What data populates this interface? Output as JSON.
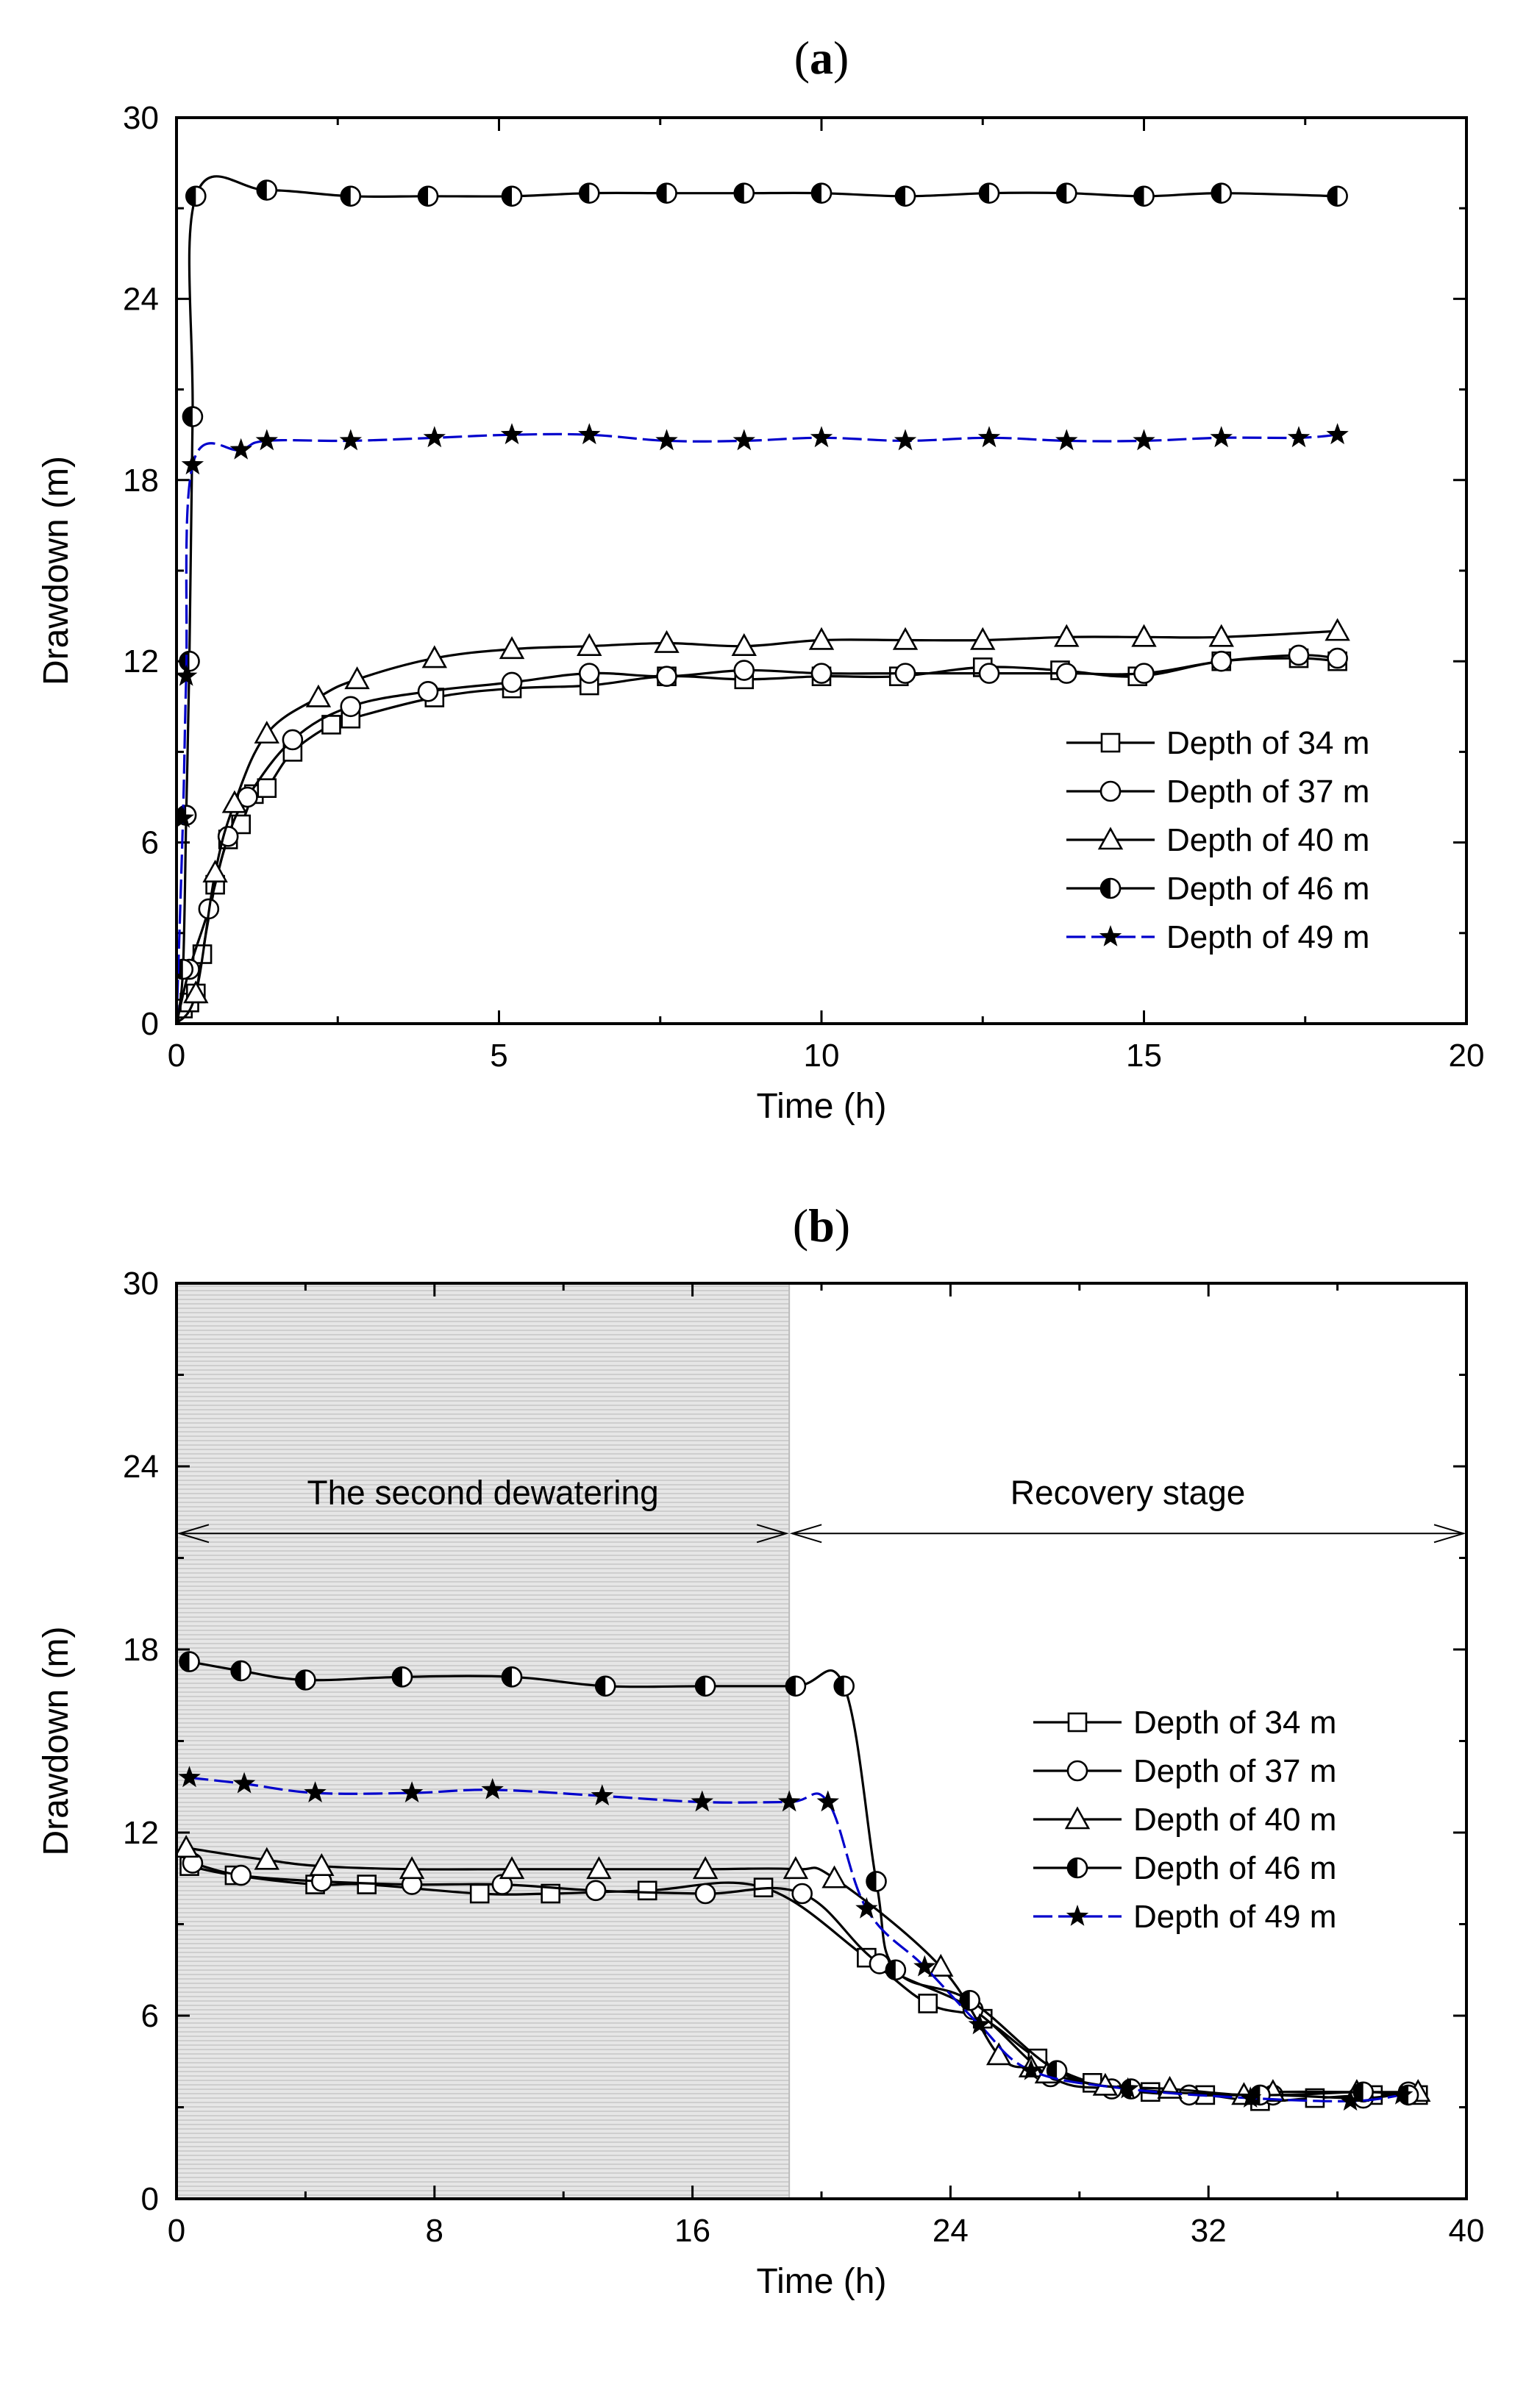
{
  "chart_data": [
    {
      "type": "line",
      "panel": "(a)",
      "title_parts": [
        "(",
        "a",
        ")"
      ],
      "xlabel": "Time (h)",
      "ylabel": "Drawdown (m)",
      "xlim": [
        0,
        20
      ],
      "ylim": [
        0,
        30
      ],
      "xticks": [
        0,
        5,
        10,
        15,
        20
      ],
      "yticks": [
        0,
        6,
        12,
        18,
        24,
        30
      ],
      "legend_position": "right-lower",
      "series": [
        {
          "name": "Depth of 34 m",
          "marker": "square",
          "color": "#000000",
          "dashed": false,
          "x": [
            0,
            0.1,
            0.2,
            0.3,
            0.4,
            0.6,
            0.8,
            1.0,
            1.2,
            1.4,
            1.8,
            2.4,
            2.7,
            4.0,
            5.2,
            6.4,
            7.6,
            8.8,
            10.0,
            11.2,
            12.5,
            13.7,
            14.9,
            16.2,
            17.4,
            18.0
          ],
          "y": [
            0,
            0.5,
            0.7,
            1.0,
            2.3,
            4.6,
            6.1,
            6.6,
            7.6,
            7.8,
            9.0,
            9.9,
            10.1,
            10.8,
            11.1,
            11.2,
            11.5,
            11.4,
            11.5,
            11.5,
            11.8,
            11.7,
            11.5,
            12.0,
            12.1,
            12.0
          ]
        },
        {
          "name": "Depth of 37 m",
          "marker": "circle",
          "color": "#000000",
          "dashed": false,
          "x": [
            0,
            0.2,
            0.5,
            0.8,
            1.1,
            1.8,
            2.7,
            3.9,
            5.2,
            6.4,
            7.6,
            8.8,
            10.0,
            11.3,
            12.6,
            13.8,
            15.0,
            16.2,
            17.4,
            18.0
          ],
          "y": [
            0,
            1.8,
            3.8,
            6.2,
            7.5,
            9.4,
            10.5,
            11.0,
            11.3,
            11.6,
            11.5,
            11.7,
            11.6,
            11.6,
            11.6,
            11.6,
            11.6,
            12.0,
            12.2,
            12.1
          ]
        },
        {
          "name": "Depth of 40 m",
          "marker": "triangle",
          "color": "#000000",
          "dashed": false,
          "x": [
            0,
            0.3,
            0.6,
            0.9,
            1.4,
            2.2,
            2.8,
            4.0,
            5.2,
            6.4,
            7.6,
            8.8,
            10.0,
            11.3,
            12.5,
            13.8,
            15.0,
            16.2,
            18.0
          ],
          "y": [
            0,
            1.0,
            5.0,
            7.3,
            9.6,
            10.8,
            11.4,
            12.1,
            12.4,
            12.5,
            12.6,
            12.5,
            12.7,
            12.7,
            12.7,
            12.8,
            12.8,
            12.8,
            13.0
          ]
        },
        {
          "name": "Depth of 46 m",
          "marker": "halfcircle",
          "color": "#000000",
          "dashed": false,
          "x": [
            0,
            0.1,
            0.15,
            0.2,
            0.25,
            0.3,
            1.4,
            2.7,
            3.9,
            5.2,
            6.4,
            7.6,
            8.8,
            10.0,
            11.3,
            12.6,
            13.8,
            15.0,
            16.2,
            18.0
          ],
          "y": [
            0,
            1.8,
            6.9,
            12.0,
            20.1,
            27.4,
            27.6,
            27.4,
            27.4,
            27.4,
            27.5,
            27.5,
            27.5,
            27.5,
            27.4,
            27.5,
            27.5,
            27.4,
            27.5,
            27.4
          ]
        },
        {
          "name": "Depth of 49 m",
          "marker": "star",
          "color": "#0000cc",
          "dashed": true,
          "x": [
            0,
            0.1,
            0.15,
            0.25,
            1.0,
            1.4,
            2.7,
            4.0,
            5.2,
            6.4,
            7.6,
            8.8,
            10.0,
            11.3,
            12.6,
            13.8,
            15.0,
            16.2,
            17.4,
            18.0
          ],
          "y": [
            0,
            6.8,
            11.5,
            18.5,
            19.0,
            19.3,
            19.3,
            19.4,
            19.5,
            19.5,
            19.3,
            19.3,
            19.4,
            19.3,
            19.4,
            19.3,
            19.3,
            19.4,
            19.4,
            19.5
          ]
        }
      ]
    },
    {
      "type": "line",
      "panel": "(b)",
      "title_parts": [
        "(",
        "b",
        ")"
      ],
      "xlabel": "Time (h)",
      "ylabel": "Drawdown (m)",
      "xlim": [
        0,
        40
      ],
      "ylim": [
        0,
        30
      ],
      "xticks": [
        0,
        8,
        16,
        24,
        32,
        40
      ],
      "yticks": [
        0,
        6,
        12,
        18,
        24,
        30
      ],
      "legend_position": "right-middle",
      "shaded_region": {
        "x_from": 0,
        "x_to": 19
      },
      "annotations": [
        {
          "text": "The second dewatering",
          "x_from": 0,
          "x_to": 19,
          "y": 21.8
        },
        {
          "text": "Recovery stage",
          "x_from": 19,
          "x_to": 40,
          "y": 21.8
        }
      ],
      "series": [
        {
          "name": "Depth of 34 m",
          "marker": "square",
          "color": "#000000",
          "dashed": false,
          "x": [
            0.4,
            1.8,
            4.3,
            5.9,
            9.4,
            11.6,
            14.6,
            18.2,
            21.4,
            23.3,
            25.0,
            26.7,
            28.4,
            30.2,
            31.9,
            33.6,
            35.3,
            37.1,
            38.5
          ],
          "y": [
            10.9,
            10.6,
            10.3,
            10.3,
            10.0,
            10.0,
            10.1,
            10.2,
            7.9,
            6.4,
            5.9,
            4.6,
            3.8,
            3.5,
            3.4,
            3.2,
            3.3,
            3.4,
            3.4
          ]
        },
        {
          "name": "Depth of 37 m",
          "marker": "circle",
          "color": "#000000",
          "dashed": false,
          "x": [
            0.5,
            2.0,
            4.5,
            7.3,
            10.1,
            13.0,
            16.4,
            19.4,
            21.8,
            24.7,
            27.1,
            29.0,
            31.4,
            34.0,
            36.8,
            38.2
          ],
          "y": [
            11.0,
            10.6,
            10.4,
            10.3,
            10.3,
            10.1,
            10.0,
            10.0,
            7.7,
            6.2,
            4.0,
            3.6,
            3.4,
            3.4,
            3.3,
            3.5
          ]
        },
        {
          "name": "Depth of 40 m",
          "marker": "triangle",
          "color": "#000000",
          "dashed": false,
          "x": [
            0.3,
            2.8,
            4.5,
            7.3,
            10.4,
            13.1,
            16.4,
            19.2,
            20.4,
            23.7,
            25.5,
            26.5,
            27.0,
            28.8,
            30.8,
            33.1,
            34.0,
            36.6,
            38.5
          ],
          "y": [
            11.5,
            11.1,
            10.9,
            10.8,
            10.8,
            10.8,
            10.8,
            10.8,
            10.5,
            7.6,
            4.7,
            4.3,
            4.1,
            3.7,
            3.6,
            3.4,
            3.5,
            3.5,
            3.5
          ]
        },
        {
          "name": "Depth of 46 m",
          "marker": "halfcircle",
          "color": "#000000",
          "dashed": false,
          "x": [
            0.4,
            2.0,
            4.0,
            7.0,
            10.4,
            13.3,
            16.4,
            19.2,
            20.7,
            21.7,
            22.3,
            24.6,
            27.3,
            29.6,
            33.6,
            36.8,
            38.2
          ],
          "y": [
            17.6,
            17.3,
            17.0,
            17.1,
            17.1,
            16.8,
            16.8,
            16.8,
            16.8,
            10.4,
            7.5,
            6.5,
            4.2,
            3.6,
            3.4,
            3.5,
            3.4
          ]
        },
        {
          "name": "Depth of 49 m",
          "marker": "star",
          "color": "#0000cc",
          "dashed": true,
          "x": [
            0.4,
            2.1,
            4.3,
            7.3,
            9.8,
            13.2,
            16.3,
            19.0,
            20.2,
            21.4,
            23.2,
            24.9,
            26.5,
            29.5,
            33.3,
            36.4,
            38.0
          ],
          "y": [
            13.8,
            13.6,
            13.3,
            13.3,
            13.4,
            13.2,
            13.0,
            13.0,
            13.0,
            9.5,
            7.6,
            5.7,
            4.2,
            3.6,
            3.3,
            3.2,
            3.4
          ]
        }
      ]
    }
  ]
}
